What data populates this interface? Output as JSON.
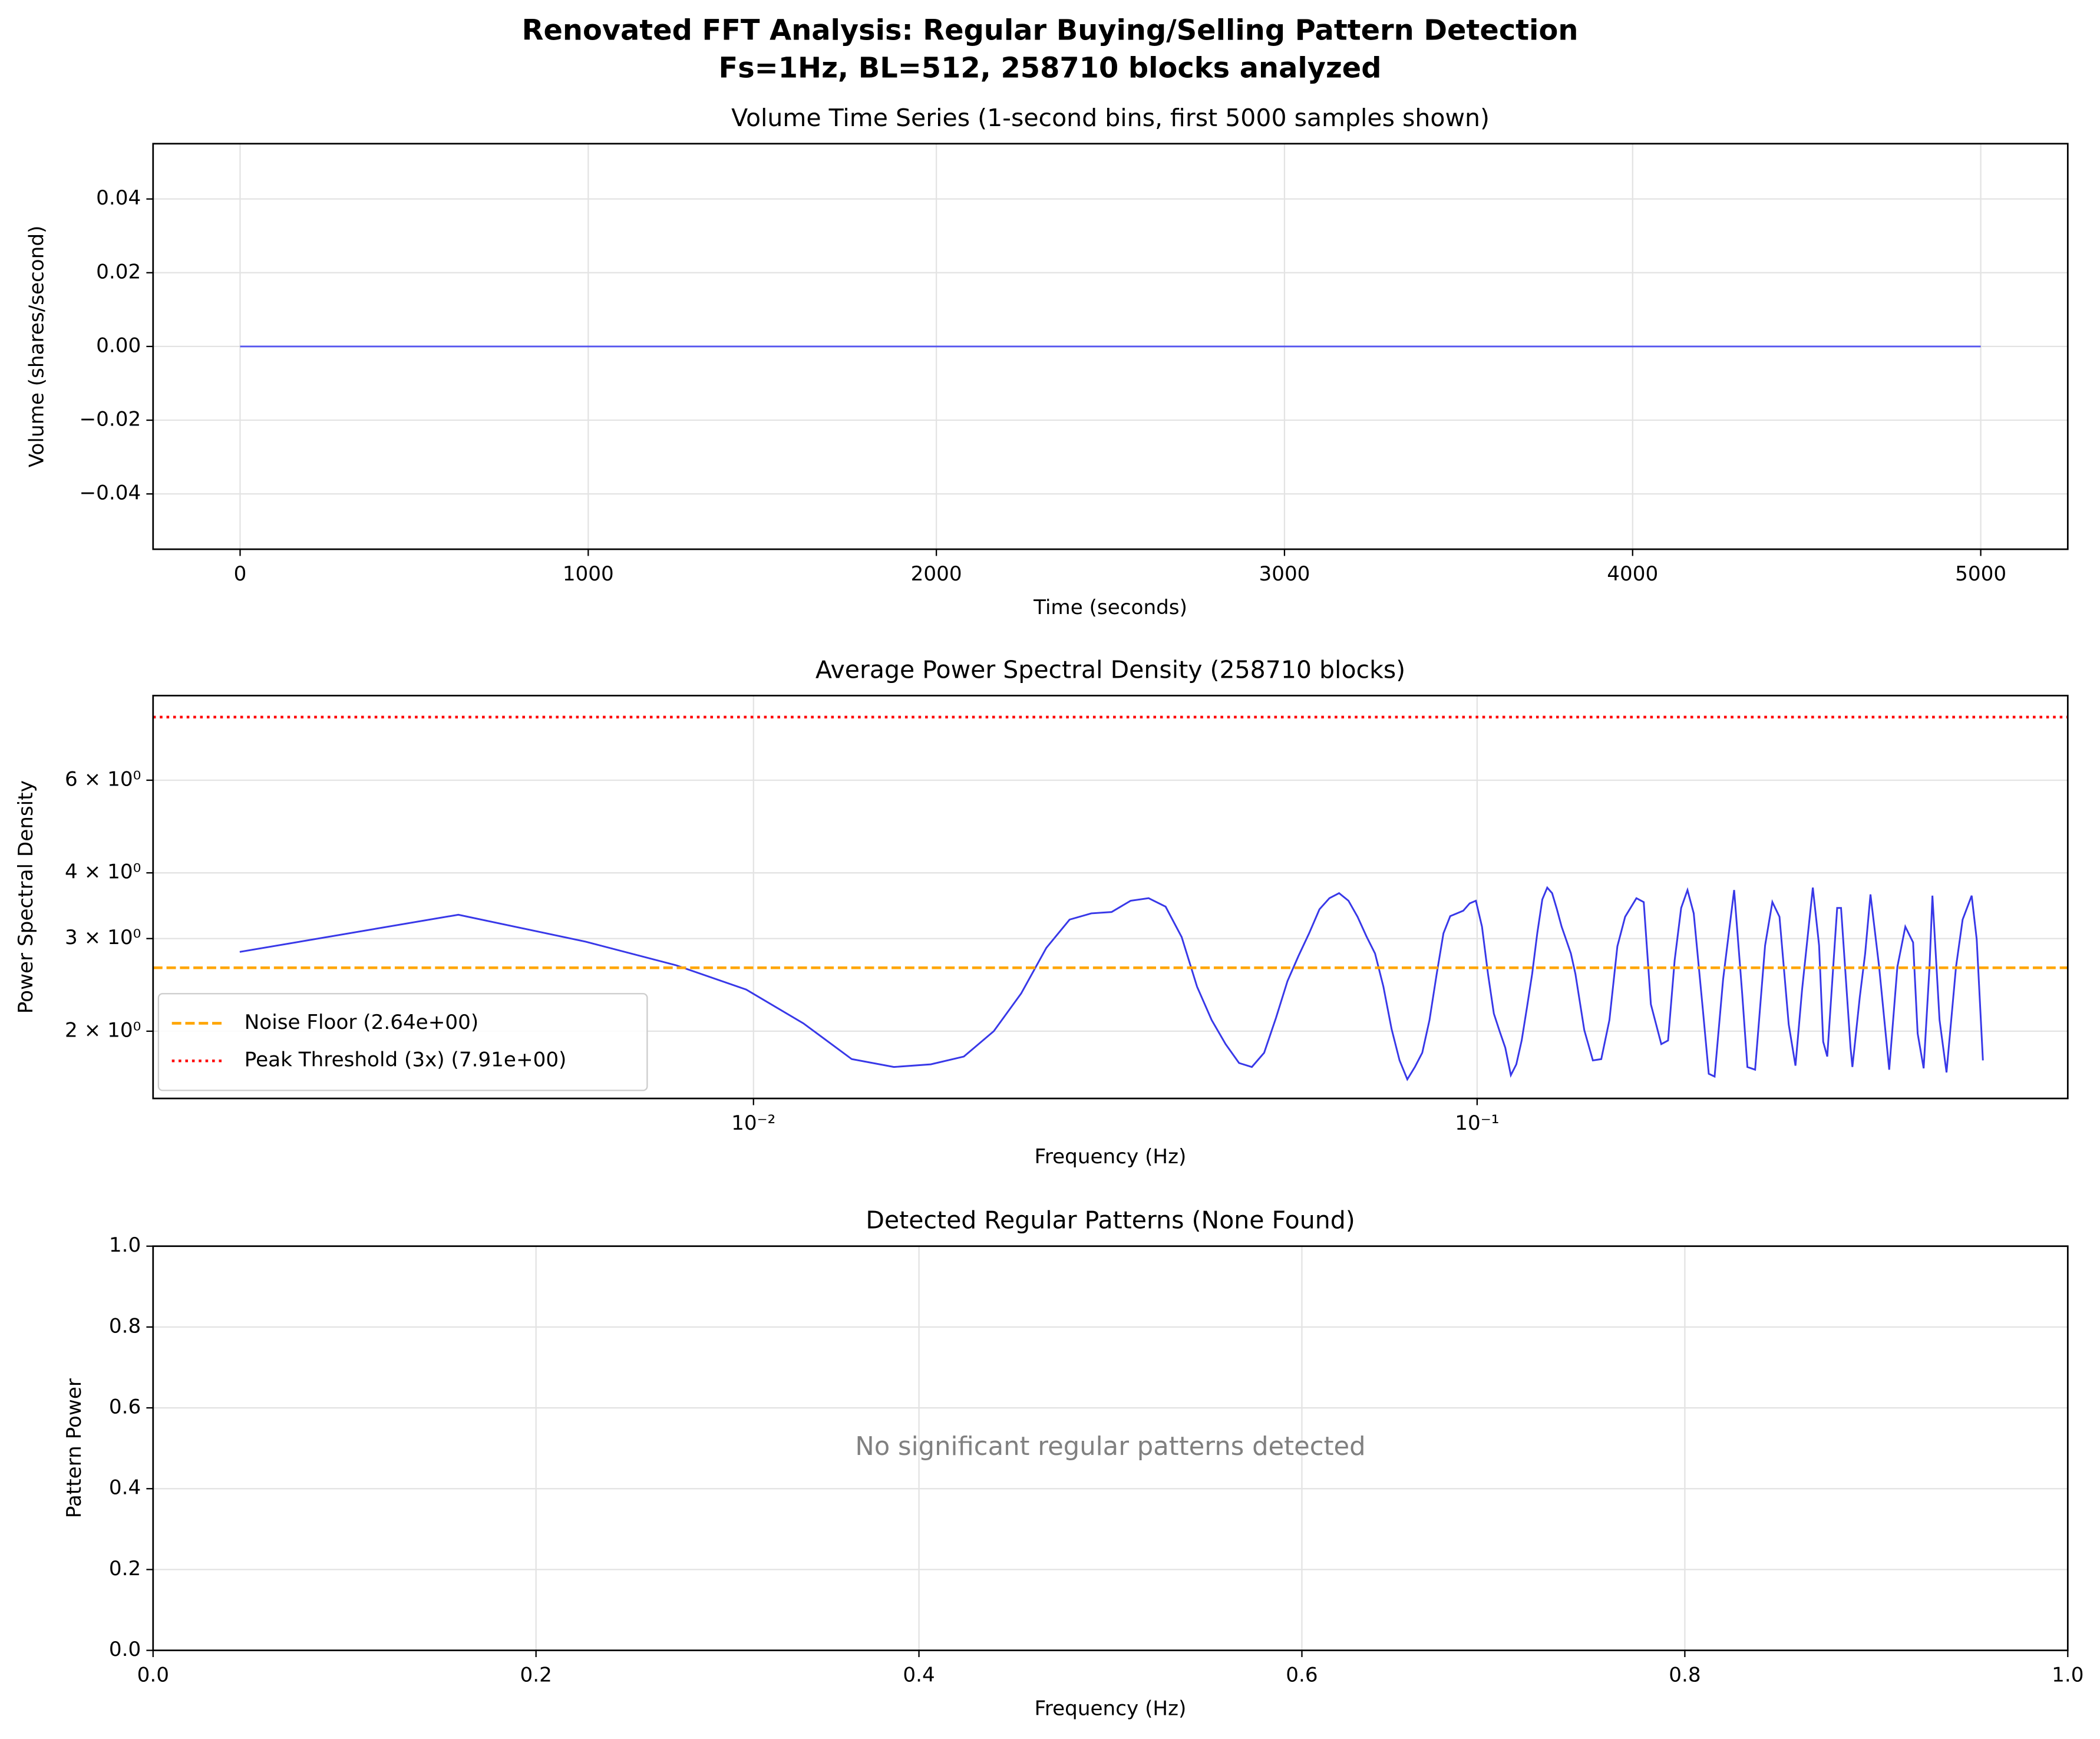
{
  "title": "Renovated FFT Analysis: Regular Buying/Selling Pattern Detection",
  "subtitle": "Fs=1Hz, BL=512, 258710 blocks analyzed",
  "chart_data": [
    {
      "type": "line",
      "title": "Volume Time Series (1-second bins, first 5000 samples shown)",
      "xlabel": "Time (seconds)",
      "ylabel": "Volume (shares/second)",
      "x": [
        0,
        5000
      ],
      "series": [
        {
          "color": "#5555ee",
          "values": [
            0,
            0
          ]
        }
      ],
      "xlim": [
        -250,
        5250
      ],
      "ylim": [
        -0.055,
        0.055
      ],
      "xticks": [
        0,
        1000,
        2000,
        3000,
        4000,
        5000
      ],
      "yticks": [
        {
          "value": -0.04,
          "label": "−0.04"
        },
        {
          "value": -0.02,
          "label": "−0.02"
        },
        {
          "value": 0,
          "label": "0.00"
        },
        {
          "value": 0.02,
          "label": "0.02"
        },
        {
          "value": 0.04,
          "label": "0.04"
        }
      ],
      "grid": true
    },
    {
      "type": "line",
      "title": "Average Power Spectral Density (258710 blocks)",
      "xlabel": "Frequency (Hz)",
      "ylabel": "Power Spectral Density",
      "xscale": "log",
      "yscale": "log",
      "x": [
        0.00195,
        0.00391,
        0.00586,
        0.00781,
        0.00977,
        0.01172,
        0.01367,
        0.01563,
        0.01758,
        0.01953,
        0.02148,
        0.02344,
        0.02539,
        0.02734,
        0.0293,
        0.03125,
        0.0332,
        0.03516,
        0.03711,
        0.03906,
        0.04102,
        0.04297,
        0.04492,
        0.04688,
        0.04883,
        0.05078,
        0.05273,
        0.05469,
        0.05664,
        0.05859,
        0.06055,
        0.0625,
        0.06445,
        0.06641,
        0.06836,
        0.07031,
        0.07227,
        0.07422,
        0.07617,
        0.07813,
        0.08008,
        0.08203,
        0.08398,
        0.08594,
        0.08789,
        0.08984,
        0.0918,
        0.09375,
        0.0957,
        0.09766,
        0.09961,
        0.10156,
        0.10352,
        0.10547,
        0.10742,
        0.10938,
        0.11133,
        0.11328,
        0.11523,
        0.11719,
        0.11914,
        0.12109,
        0.12305,
        0.125,
        0.12695,
        0.12891,
        0.13086,
        0.13281,
        0.13477,
        0.13672,
        0.14063,
        0.14453,
        0.14844,
        0.15234,
        0.15625,
        0.16016,
        0.16602,
        0.16992,
        0.17383,
        0.17969,
        0.18359,
        0.1875,
        0.19141,
        0.19531,
        0.19922,
        0.20508,
        0.20898,
        0.21289,
        0.21875,
        0.22656,
        0.23242,
        0.23633,
        0.24219,
        0.25,
        0.25586,
        0.26172,
        0.26953,
        0.27539,
        0.28125,
        0.29102,
        0.29688,
        0.30078,
        0.30469,
        0.3125,
        0.31445,
        0.31836,
        0.32813,
        0.33008,
        0.33789,
        0.34375,
        0.34961,
        0.35938,
        0.37109,
        0.38086,
        0.39063,
        0.40039,
        0.40625,
        0.41406,
        0.42188,
        0.42578,
        0.43555,
        0.44531,
        0.45898,
        0.46875,
        0.48242,
        0.49023,
        0.5
      ],
      "series": [
        {
          "color": "#3838e8",
          "values": [
            2.83,
            3.33,
            2.96,
            2.67,
            2.4,
            2.07,
            1.77,
            1.71,
            1.73,
            1.79,
            2.0,
            2.36,
            2.88,
            3.26,
            3.35,
            3.37,
            3.54,
            3.58,
            3.45,
            3.02,
            2.43,
            2.1,
            1.89,
            1.74,
            1.71,
            1.82,
            2.12,
            2.49,
            2.78,
            3.07,
            3.41,
            3.58,
            3.66,
            3.54,
            3.3,
            3.03,
            2.81,
            2.43,
            2.02,
            1.76,
            1.62,
            1.71,
            1.82,
            2.1,
            2.56,
            3.07,
            3.31,
            3.35,
            3.39,
            3.5,
            3.54,
            3.16,
            2.57,
            2.16,
            2.0,
            1.86,
            1.65,
            1.73,
            1.92,
            2.22,
            2.57,
            3.07,
            3.56,
            3.75,
            3.66,
            3.41,
            3.16,
            2.98,
            2.81,
            2.57,
            2.01,
            1.76,
            1.77,
            2.1,
            2.9,
            3.3,
            3.58,
            3.52,
            2.25,
            1.89,
            1.92,
            2.73,
            3.43,
            3.71,
            3.35,
            2.2,
            1.66,
            1.64,
            2.51,
            3.71,
            2.36,
            1.71,
            1.69,
            2.91,
            3.52,
            3.3,
            2.06,
            1.72,
            2.4,
            3.75,
            2.91,
            1.91,
            1.79,
            3.02,
            3.43,
            3.43,
            1.86,
            1.71,
            2.32,
            2.81,
            3.64,
            2.65,
            1.69,
            2.65,
            3.16,
            2.95,
            1.98,
            1.7,
            2.65,
            3.62,
            2.1,
            1.67,
            2.65,
            3.26,
            3.62,
            2.99,
            1.76
          ]
        }
      ],
      "hlines": [
        {
          "name": "Noise Floor (2.64e+00)",
          "value": 2.64,
          "color": "orange",
          "linestyle": "dashed"
        },
        {
          "name": "Peak Threshold (3x) (7.91e+00)",
          "value": 7.91,
          "color": "red",
          "linestyle": "dotted"
        }
      ],
      "legend": "lower left",
      "xlim": [
        0.00148,
        0.655
      ],
      "ylim": [
        1.49,
        8.69
      ],
      "xticks": [
        {
          "value": 0.01,
          "label": "10⁻²"
        },
        {
          "value": 0.1,
          "label": "10⁻¹"
        }
      ],
      "yticks": [
        {
          "value": 2,
          "label": "2 × 10⁰"
        },
        {
          "value": 3,
          "label": "3 × 10⁰"
        },
        {
          "value": 4,
          "label": "4 × 10⁰"
        },
        {
          "value": 6,
          "label": "6 × 10⁰"
        }
      ],
      "grid": true
    },
    {
      "type": "bar",
      "title": "Detected Regular Patterns (None Found)",
      "xlabel": "Frequency (Hz)",
      "ylabel": "Pattern Power",
      "annotation": "No significant regular patterns detected",
      "xlim": [
        0,
        1
      ],
      "ylim": [
        0,
        1
      ],
      "xticks": [
        {
          "value": 0,
          "label": "0.0"
        },
        {
          "value": 0.2,
          "label": "0.2"
        },
        {
          "value": 0.4,
          "label": "0.4"
        },
        {
          "value": 0.6,
          "label": "0.6"
        },
        {
          "value": 0.8,
          "label": "0.8"
        },
        {
          "value": 1,
          "label": "1.0"
        }
      ],
      "yticks": [
        {
          "value": 0,
          "label": "0.0"
        },
        {
          "value": 0.2,
          "label": "0.2"
        },
        {
          "value": 0.4,
          "label": "0.4"
        },
        {
          "value": 0.6,
          "label": "0.6"
        },
        {
          "value": 0.8,
          "label": "0.8"
        },
        {
          "value": 1,
          "label": "1.0"
        }
      ],
      "grid": true
    }
  ]
}
